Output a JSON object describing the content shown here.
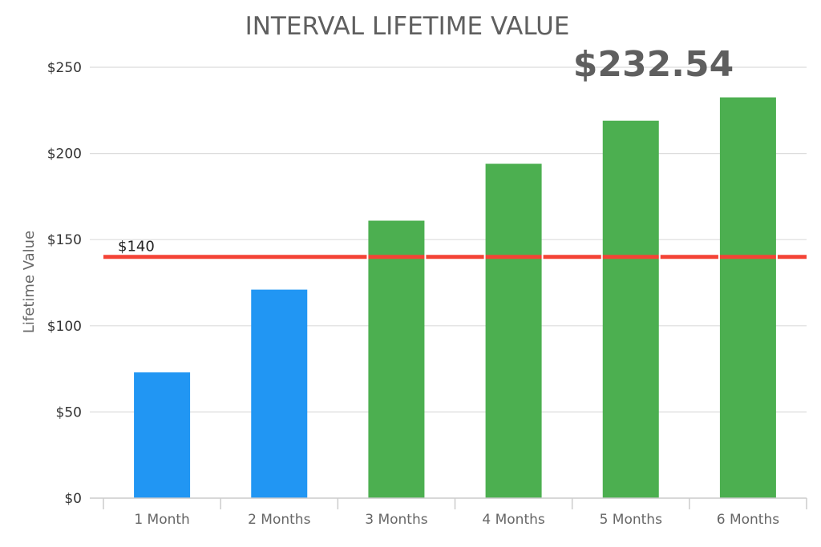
{
  "chart_data": {
    "type": "bar",
    "title": "INTERVAL LIFETIME VALUE",
    "highlight_value": "$232.54",
    "ylabel": "Lifetime Value",
    "xlabel": "",
    "ylim": [
      0,
      250
    ],
    "yticks": [
      0,
      50,
      100,
      150,
      200,
      250
    ],
    "ytick_labels": [
      "$0",
      "$50",
      "$100",
      "$150",
      "$200",
      "$250"
    ],
    "categories": [
      "1 Month",
      "2 Months",
      "3 Months",
      "4 Months",
      "5 Months",
      "6 Months"
    ],
    "values": [
      73,
      121,
      161,
      194,
      219,
      232.54
    ],
    "bar_colors": [
      "#2196f3",
      "#2196f3",
      "#4caf50",
      "#4caf50",
      "#4caf50",
      "#4caf50"
    ],
    "reference_line": {
      "value": 140,
      "label": "$140",
      "color": "#f44336"
    },
    "grid": true,
    "legend": "none"
  }
}
